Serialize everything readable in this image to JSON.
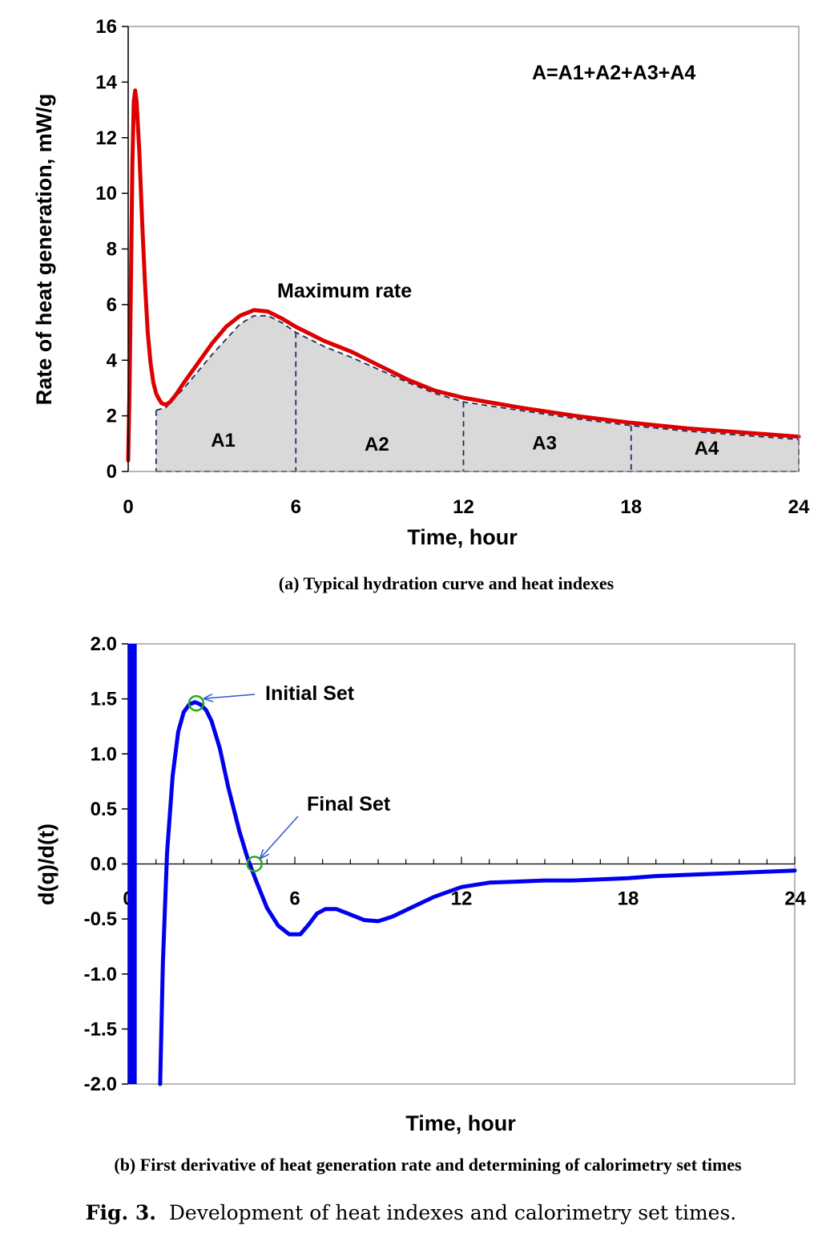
{
  "figure_label": "Fig. 3.",
  "figure_caption": "Development of heat indexes and calorimetry set times.",
  "chart_data": [
    {
      "type": "area",
      "subcaption": "(a) Typical hydration curve and heat indexes",
      "xlabel": "Time, hour",
      "ylabel": "Rate of heat generation, mW/g",
      "xlim": [
        0,
        24
      ],
      "ylim": [
        0,
        16
      ],
      "xticks": [
        "0",
        "6",
        "12",
        "18",
        "24"
      ],
      "yticks": [
        "0",
        "2",
        "4",
        "6",
        "8",
        "10",
        "12",
        "14",
        "16"
      ],
      "grid": false,
      "formula": "A=A1+A2+A3+A4",
      "peak_label": "Maximum rate",
      "colors": {
        "curve": "#dd0000",
        "fill": "#d9d9d9",
        "dashed": "#1f2f5f"
      },
      "series": [
        {
          "x": [
            0.0,
            0.05,
            0.1,
            0.15,
            0.2,
            0.25,
            0.3,
            0.4,
            0.5,
            0.6,
            0.7,
            0.8,
            0.9,
            1.0,
            1.1,
            1.2,
            1.35,
            1.5,
            1.7,
            2.0,
            2.5,
            3.0,
            3.5,
            4.0,
            4.5,
            5.0,
            5.5,
            6.0,
            7.0,
            8.0,
            9.0,
            10.0,
            11.0,
            12.0,
            14.0,
            16.0,
            18.0,
            20.0,
            22.0,
            24.0
          ],
          "y": [
            0.4,
            3.0,
            7.0,
            11.0,
            13.3,
            13.7,
            13.3,
            11.5,
            9.0,
            6.8,
            5.0,
            3.9,
            3.2,
            2.8,
            2.6,
            2.45,
            2.4,
            2.5,
            2.75,
            3.2,
            3.9,
            4.6,
            5.2,
            5.6,
            5.8,
            5.75,
            5.5,
            5.2,
            4.7,
            4.3,
            3.8,
            3.3,
            2.9,
            2.65,
            2.3,
            2.0,
            1.75,
            1.55,
            1.4,
            1.25
          ]
        },
        {
          "x": [
            1.0,
            1.35,
            2.0,
            3.0,
            4.0,
            4.5,
            5.0,
            5.5,
            6.0,
            7.0,
            8.0,
            9.0,
            10.0,
            11.0,
            12.0,
            14.0,
            16.0,
            18.0,
            20.0,
            22.0,
            24.0
          ],
          "y": [
            2.2,
            2.3,
            3.0,
            4.2,
            5.3,
            5.6,
            5.6,
            5.35,
            5.0,
            4.5,
            4.1,
            3.65,
            3.2,
            2.8,
            2.5,
            2.2,
            1.9,
            1.65,
            1.45,
            1.3,
            1.15
          ]
        }
      ],
      "regions": [
        {
          "label": "A1",
          "from": 1,
          "to": 6,
          "label_x": 3.4,
          "label_y": 0.9
        },
        {
          "label": "A2",
          "from": 6,
          "to": 12,
          "label_x": 8.9,
          "label_y": 0.75
        },
        {
          "label": "A3",
          "from": 12,
          "to": 18,
          "label_x": 14.9,
          "label_y": 0.8
        },
        {
          "label": "A4",
          "from": 18,
          "to": 24,
          "label_x": 20.7,
          "label_y": 0.6
        }
      ]
    },
    {
      "type": "line",
      "subcaption": "(b) First derivative of heat generation rate and determining of calorimetry set times",
      "xlabel": "Time, hour",
      "ylabel": "d(q)/d(t)",
      "xlim": [
        0,
        24
      ],
      "ylim": [
        -2.0,
        2.0
      ],
      "xticks": [
        "0",
        "6",
        "12",
        "18",
        "24"
      ],
      "yticks": [
        "2.0",
        "1.5",
        "1.0",
        "0.5",
        "0.0",
        "-0.5",
        "-1.0",
        "-1.5",
        "-2.0"
      ],
      "grid": false,
      "colors": {
        "curve": "#0000ee",
        "marker": "#22aa22",
        "arrow": "#3355cc"
      },
      "series": [
        {
          "x": [
            1.15,
            1.25,
            1.4,
            1.6,
            1.8,
            2.0,
            2.2,
            2.4,
            2.5,
            2.6,
            2.8,
            3.0,
            3.3,
            3.6,
            4.0,
            4.3,
            4.6,
            5.0,
            5.4,
            5.8,
            6.2,
            6.5,
            6.8,
            7.1,
            7.5,
            8.0,
            8.5,
            9.0,
            9.5,
            10.0,
            11.0,
            12.0,
            13.0,
            14.0,
            15.0,
            16.0,
            17.0,
            18.0,
            19.0,
            20.0,
            21.0,
            22.0,
            23.0,
            24.0
          ],
          "y": [
            -2.0,
            -0.9,
            0.1,
            0.8,
            1.2,
            1.38,
            1.45,
            1.47,
            1.46,
            1.45,
            1.4,
            1.3,
            1.05,
            0.7,
            0.3,
            0.05,
            -0.15,
            -0.4,
            -0.56,
            -0.64,
            -0.64,
            -0.55,
            -0.45,
            -0.41,
            -0.41,
            -0.46,
            -0.51,
            -0.52,
            -0.48,
            -0.42,
            -0.3,
            -0.21,
            -0.17,
            -0.16,
            -0.15,
            -0.15,
            -0.14,
            -0.13,
            -0.11,
            -0.1,
            -0.09,
            -0.08,
            -0.07,
            -0.06
          ]
        }
      ],
      "spike": {
        "x": [
          0.05,
          0.25
        ],
        "y": [
          -2.0,
          2.0
        ]
      },
      "annotations": [
        {
          "label": "Initial Set",
          "x": 2.45,
          "y": 1.46
        },
        {
          "label": "Final Set",
          "x": 4.55,
          "y": 0.0
        }
      ]
    }
  ]
}
